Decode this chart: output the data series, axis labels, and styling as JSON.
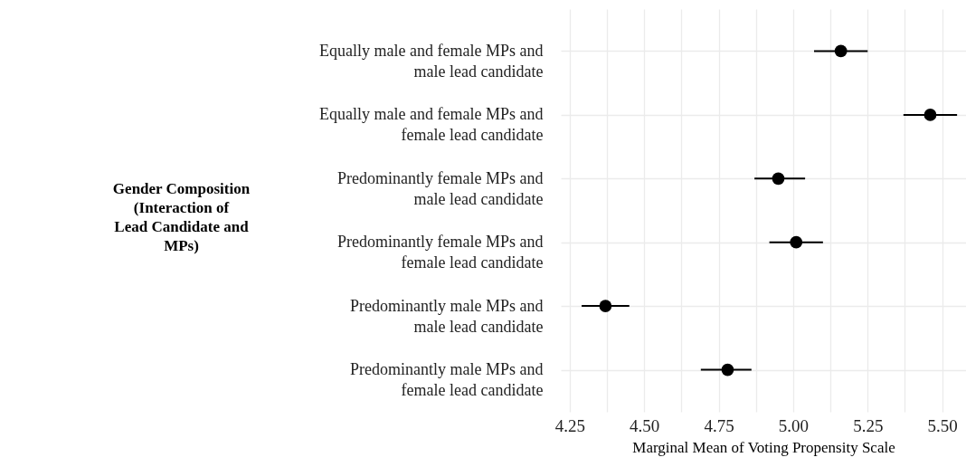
{
  "chart_data": {
    "type": "scatter",
    "orientation": "horizontal",
    "marker": "circle",
    "color": "#000000",
    "grid": true,
    "xlabel": "Marginal Mean of Voting Propensity Scale",
    "ylabel": "Gender Composition (Interaction of Lead Candidate and MPs)",
    "categories": [
      "Equally male and female MPs and male lead candidate",
      "Equally male and female MPs and female lead candidate",
      "Predominantly female MPs and male lead candidate",
      "Predominantly female MPs and female lead candidate",
      "Predominantly male MPs and male lead candidate",
      "Predominantly male MPs and female lead candidate"
    ],
    "values": [
      5.16,
      5.46,
      4.95,
      5.01,
      4.37,
      4.78
    ],
    "errors": [
      [
        5.07,
        5.25
      ],
      [
        5.37,
        5.55
      ],
      [
        4.87,
        5.04
      ],
      [
        4.92,
        5.1
      ],
      [
        4.29,
        4.45
      ],
      [
        4.69,
        4.86
      ]
    ],
    "xlim": [
      4.22,
      5.58
    ],
    "xticks": [
      4.25,
      {
        "value": 4.375,
        "label": null
      },
      {
        "value": 4.5,
        "label": "4.50"
      },
      {
        "value": 4.625,
        "label": null
      },
      4.75,
      {
        "value": 4.875,
        "label": null
      },
      {
        "value": 5,
        "label": "5.00"
      },
      {
        "value": 5.125,
        "label": null
      },
      5.25,
      {
        "value": 5.375,
        "label": null
      },
      {
        "value": 5.5,
        "label": "5.50"
      }
    ]
  }
}
